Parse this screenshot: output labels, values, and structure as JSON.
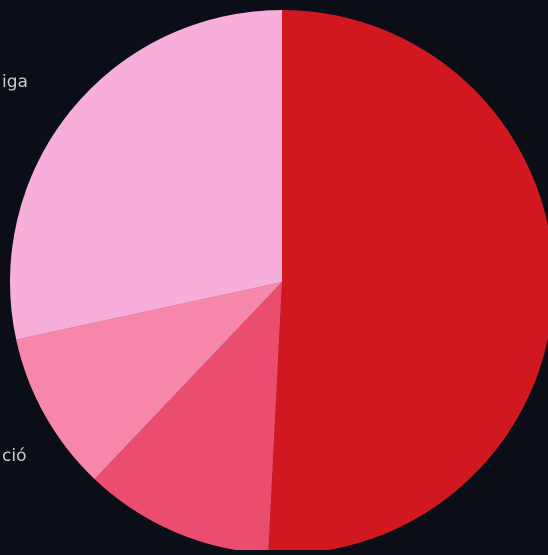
{
  "chart_data": {
    "type": "pie",
    "title": "",
    "legend": "none",
    "series": [
      {
        "slices": [
          {
            "label": "",
            "value": 0.508,
            "color": "#d0181e"
          },
          {
            "label": "",
            "value": 0.113,
            "color": "#ea4d6e"
          },
          {
            "label": "ció",
            "value": 0.095,
            "color": "#f687aa"
          },
          {
            "label": "iga",
            "value": 0.284,
            "color": "#f8aedb"
          }
        ]
      }
    ]
  },
  "background_color": "#0b0e17"
}
